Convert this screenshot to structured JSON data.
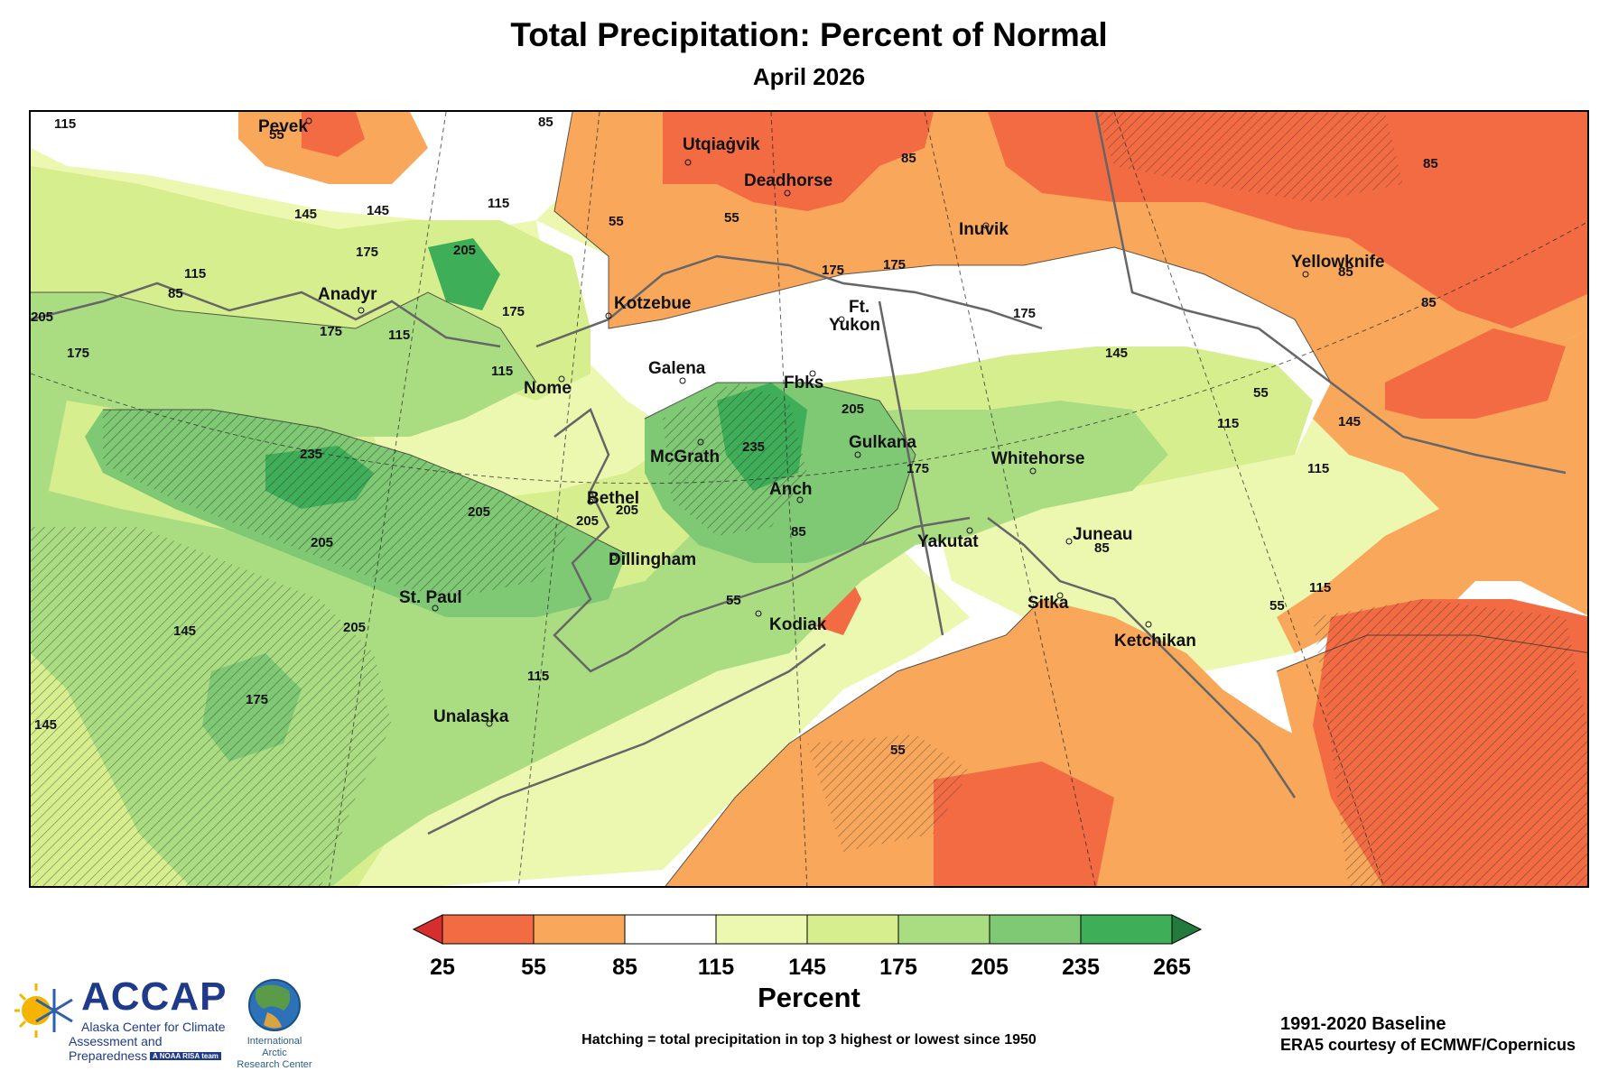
{
  "title": "Total Precipitation: Percent of Normal",
  "subtitle": "April 2026",
  "colorbar": {
    "ticks": [
      "25",
      "55",
      "85",
      "115",
      "145",
      "175",
      "205",
      "235",
      "265"
    ],
    "colors": [
      "#f26b43",
      "#f8a75b",
      "#ffffff",
      "#ecf7b0",
      "#d7ee8e",
      "#aadd82",
      "#7fc874",
      "#3fae58"
    ],
    "under_color": "#d62e2e",
    "over_color": "#237a3d",
    "unit_label": "Percent"
  },
  "cities": [
    "Pevek",
    "Utqiaġvik",
    "Deadhorse",
    "Inuvik",
    "Yellowknife",
    "Anadyr",
    "Kotzebue",
    "Ft.",
    "Yukon",
    "Nome",
    "Galena",
    "Fbks",
    "Gulkana",
    "McGrath",
    "Whitehorse",
    "Bethel",
    "Anch",
    "Yakutat",
    "Juneau",
    "Dillingham",
    "St. Paul",
    "Kodiak",
    "Sitka",
    "Ketchikan",
    "Unalaska"
  ],
  "contour_labels": [
    "115",
    "55",
    "85",
    "85",
    "145",
    "145",
    "115",
    "55",
    "85",
    "115",
    "55",
    "175",
    "205",
    "85",
    "115",
    "175",
    "205",
    "175",
    "175",
    "115",
    "175",
    "175",
    "145",
    "85",
    "85",
    "115",
    "145",
    "55",
    "205",
    "235",
    "205",
    "115",
    "205",
    "235",
    "205",
    "175",
    "175",
    "85",
    "205",
    "55",
    "145",
    "205",
    "115",
    "55",
    "175",
    "85",
    "145",
    "115",
    "55"
  ],
  "footer": {
    "hatching_note": "Hatching = total precipitation in top 3 highest or lowest since 1950",
    "baseline": "1991-2020 Baseline",
    "credit": "ERA5 courtesy of ECMWF/Copernicus"
  },
  "logos": {
    "accap_name": "ACCAP",
    "accap_line1": "Alaska Center for Climate",
    "accap_line2": "Assessment and Preparedness",
    "accap_tag": "A NOAA RISA team",
    "iarc_line1": "International Arctic",
    "iarc_line2": "Research Center"
  }
}
